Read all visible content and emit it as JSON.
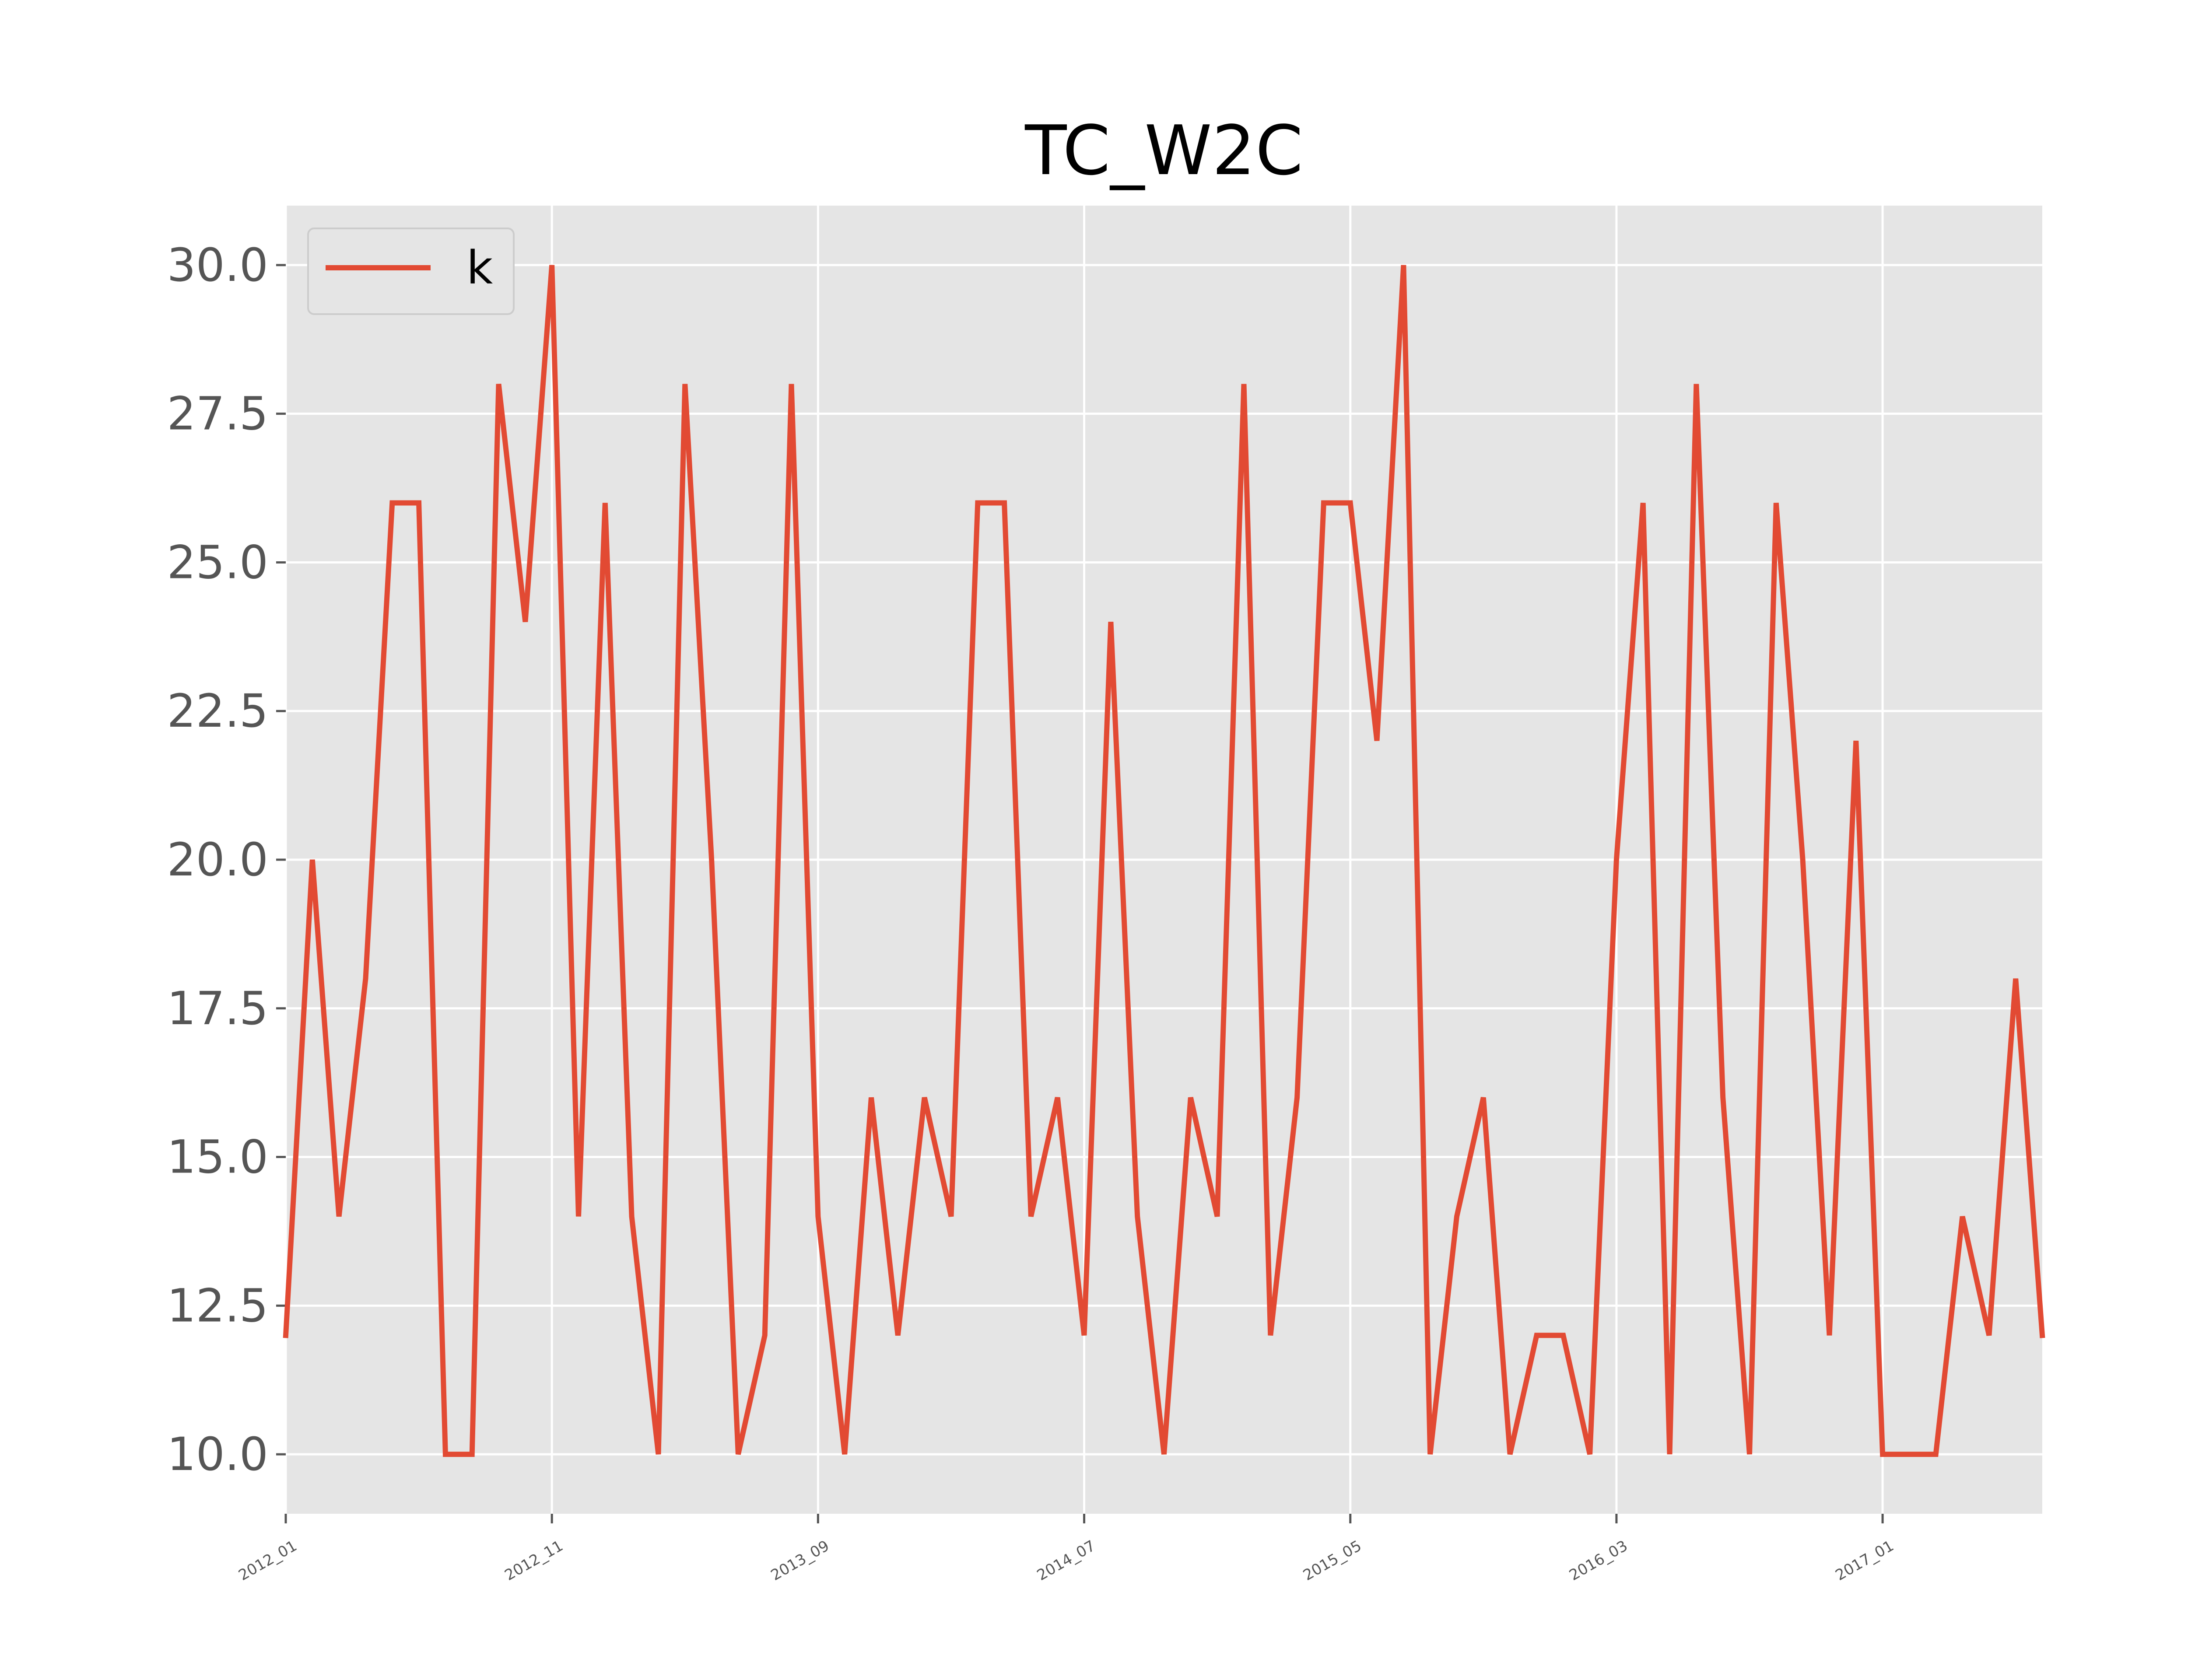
{
  "chart_data": {
    "type": "line",
    "title": "TC_W2C",
    "xlabel": "",
    "ylabel": "",
    "x_tick_labels": [
      "2012_01",
      "2012_11",
      "2013_09",
      "2014_07",
      "2015_05",
      "2016_03",
      "2017_01"
    ],
    "x_tick_indices": [
      0,
      10,
      20,
      30,
      40,
      50,
      60
    ],
    "y_ticks": [
      10.0,
      12.5,
      15.0,
      17.5,
      20.0,
      22.5,
      25.0,
      27.5,
      30.0
    ],
    "y_tick_labels": [
      "10.0",
      "12.5",
      "15.0",
      "17.5",
      "20.0",
      "22.5",
      "25.0",
      "27.5",
      "30.0"
    ],
    "ylim": [
      9.0,
      31.0
    ],
    "xlim": [
      0,
      66
    ],
    "grid": true,
    "legend_position": "top-left",
    "series": [
      {
        "name": "k",
        "color": "#e24a33",
        "values": [
          12,
          20,
          14,
          18,
          26,
          26,
          10,
          10,
          28,
          24,
          30,
          14,
          26,
          14,
          10,
          28,
          20,
          10,
          12,
          28,
          14,
          10,
          16,
          12,
          16,
          14,
          26,
          26,
          14,
          16,
          12,
          24,
          14,
          10,
          16,
          14,
          28,
          12,
          16,
          26,
          26,
          22,
          30,
          10,
          14,
          16,
          10,
          12,
          12,
          10,
          20,
          26,
          10,
          28,
          16,
          10,
          26,
          20,
          12,
          22,
          10,
          10,
          10,
          14,
          12,
          18,
          12
        ]
      }
    ]
  },
  "colors": {
    "plot_background": "#e5e5e5",
    "grid": "#ffffff",
    "line": "#e24a33",
    "tick_text": "#555555"
  }
}
